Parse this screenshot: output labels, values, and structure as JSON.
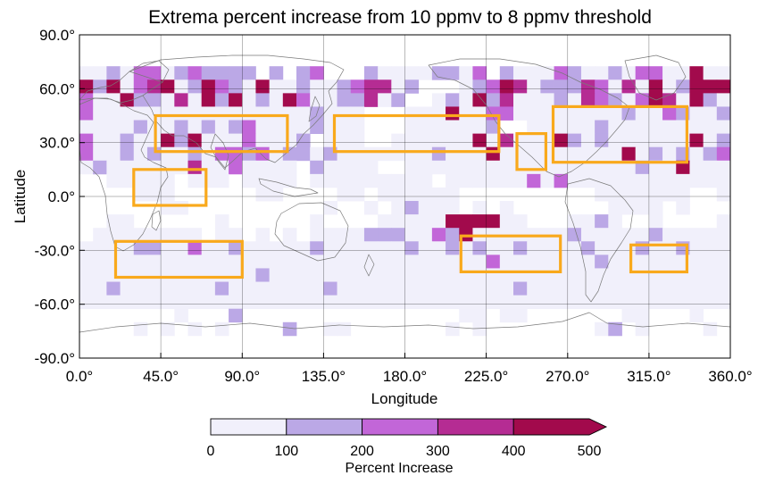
{
  "chart_data": {
    "type": "heatmap",
    "title": "Extrema percent increase from 10 ppmv to 8 ppmv threshold",
    "xlabel": "Longitude",
    "ylabel": "Latitude",
    "xlim": [
      0,
      360
    ],
    "ylim": [
      -90,
      90
    ],
    "x_ticks": [
      0,
      45,
      90,
      135,
      180,
      225,
      270,
      315,
      360
    ],
    "y_ticks": [
      90,
      60,
      30,
      0,
      -30,
      -60,
      -90
    ],
    "x_tick_labels": [
      "0.0°",
      "45.0°",
      "90.0°",
      "135.0°",
      "180.0°",
      "225.0°",
      "270.0°",
      "315.0°",
      "360.0°"
    ],
    "y_tick_labels": [
      "90.0°",
      "60.0°",
      "30.0°",
      "0.0°",
      "-30.0°",
      "-60.0°",
      "-90.0°"
    ],
    "grid": true,
    "cell_size_deg": 7.5,
    "lat_band_centers": [
      76.25,
      68.75,
      61.25,
      53.75,
      46.25,
      38.75,
      31.25,
      23.75,
      16.25,
      8.75,
      1.25,
      -6.25,
      -13.75,
      -21.25,
      -28.75,
      -36.25,
      -43.75,
      -51.25,
      -58.75,
      -66.25,
      -73.75,
      -81.25
    ],
    "lat_band_rows": [
      "000000000000000000000000000000000000000000000000",
      "112133123222202023000211112213021113211213311511",
      "525134512532151121123441200012354122243141512555",
      "311522141525121531122412001215241112143213541521",
      "311111111111111112111000111511331111111121132112",
      "111121121212311112111000111111200111112111111111",
      "311211525111311120111001111115141115212111111512",
      "311212112133231221211111112111511111111151212123",
      "121111114113111102111100111111111111111112115111",
      "001111101110111101111111110111111313111111111111",
      "000011100000011000011011111100000000001111111001",
      "000000110000000000100101211101010000000111101000",
      "001100000010000001000011111555511000112100100001",
      "011111111011010101111222113251111111211111211111",
      "111122113112111112111111211212112111121112112111",
      "111111111111111111111111111111311111112111111111",
      "111111111111121111111111111111111111111111111111",
      "112111111121111111211111111111112111111111111111",
      "111111111111111111111111111111111111111111111111",
      "000000010002000000000000000011011000000011000100",
      "000010101010000200110000000101000000001201000010",
      "000000000000000000000000000000000000000000000000"
    ],
    "color_bins": [
      {
        "range": [
          0,
          100
        ],
        "color": "#f1f0fb"
      },
      {
        "range": [
          100,
          200
        ],
        "color": "#bba8e6"
      },
      {
        "range": [
          200,
          300
        ],
        "color": "#c266d8"
      },
      {
        "range": [
          300,
          400
        ],
        "color": "#b52c93"
      },
      {
        "range": [
          400,
          500
        ],
        "color": "#a20a4c"
      }
    ],
    "colorbar": {
      "label": "Percent Increase",
      "ticks": [
        0,
        100,
        200,
        300,
        400,
        500
      ],
      "tick_labels": [
        "0",
        "100",
        "200",
        "300",
        "400",
        "500"
      ],
      "extend": "max",
      "placement": "bottom"
    },
    "highlight_boxes": [
      {
        "lon": [
          42,
          115
        ],
        "lat": [
          25,
          45
        ]
      },
      {
        "lon": [
          30,
          70
        ],
        "lat": [
          -5,
          15
        ]
      },
      {
        "lon": [
          20,
          90
        ],
        "lat": [
          -45,
          -25
        ]
      },
      {
        "lon": [
          141,
          232
        ],
        "lat": [
          25,
          45
        ]
      },
      {
        "lon": [
          242,
          258
        ],
        "lat": [
          15,
          35
        ]
      },
      {
        "lon": [
          262,
          336
        ],
        "lat": [
          19,
          50
        ]
      },
      {
        "lon": [
          211,
          266
        ],
        "lat": [
          -42,
          -22
        ]
      },
      {
        "lon": [
          305,
          336
        ],
        "lat": [
          -42,
          -27
        ]
      }
    ],
    "highlight_color": "#f9a91c"
  }
}
